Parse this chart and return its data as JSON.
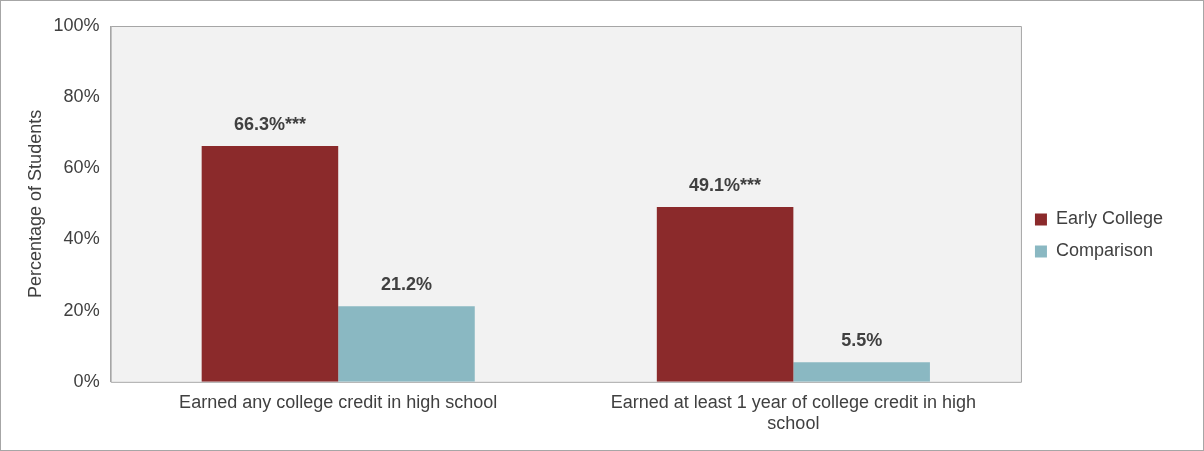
{
  "chart_data": {
    "type": "bar",
    "ylabel": "Percentage of Students",
    "categories": [
      "Earned any college credit in high school",
      "Earned at least 1 year of college credit in high school"
    ],
    "series": [
      {
        "name": "Early College",
        "color": "#8b2a2b",
        "values": [
          66.3,
          49.1
        ],
        "value_labels": [
          "66.3%***",
          "49.1%***"
        ]
      },
      {
        "name": "Comparison",
        "color": "#8ab8c2",
        "values": [
          21.2,
          5.5
        ],
        "value_labels": [
          "21.2%",
          "5.5%"
        ]
      }
    ],
    "ylim": [
      0,
      100
    ],
    "yticks": [
      {
        "value": 0,
        "label": "0%"
      },
      {
        "value": 20,
        "label": "20%"
      },
      {
        "value": 40,
        "label": "40%"
      },
      {
        "value": 60,
        "label": "60%"
      },
      {
        "value": 80,
        "label": "80%"
      },
      {
        "value": 100,
        "label": "100%"
      }
    ],
    "grid": false,
    "legend": "right"
  }
}
